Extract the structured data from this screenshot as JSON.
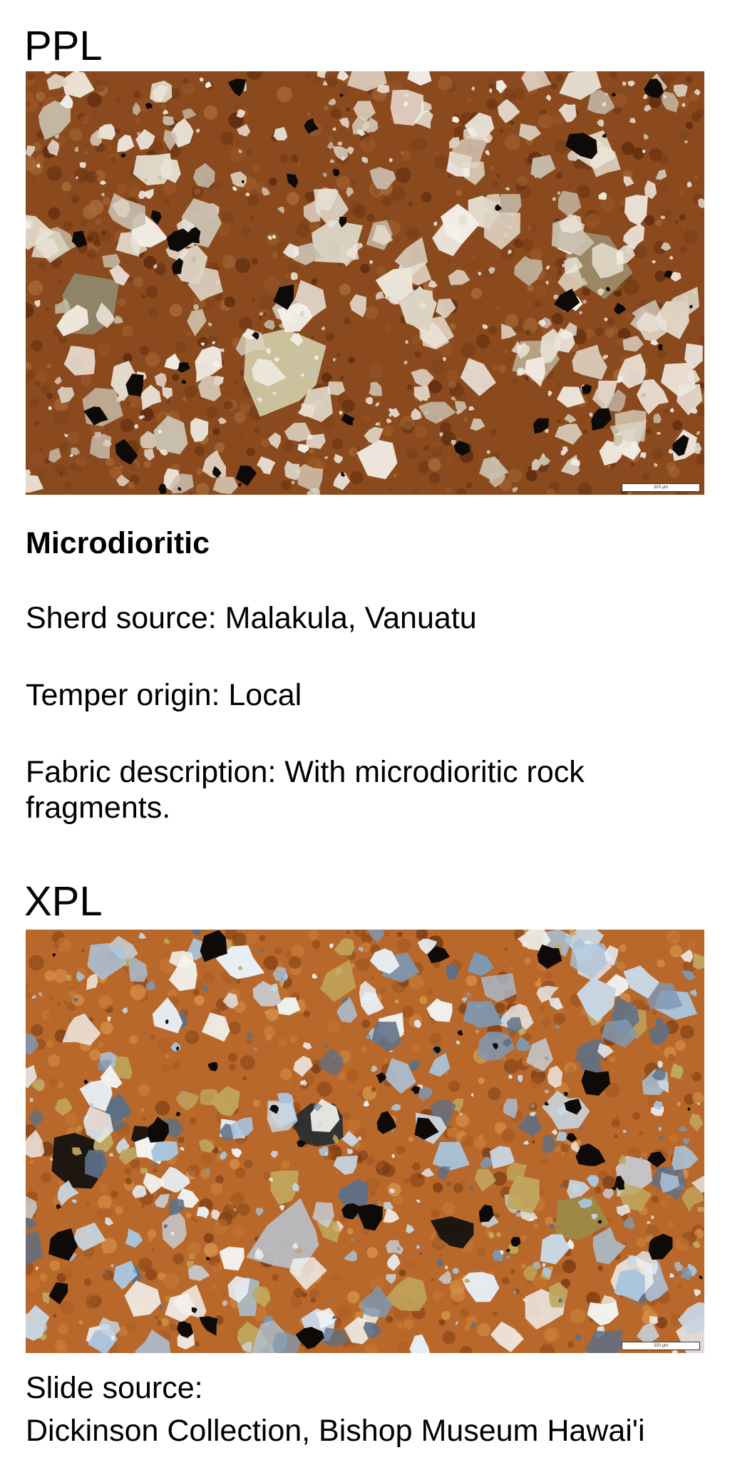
{
  "ppl": {
    "heading": "PPL",
    "scale_label": "200 µm"
  },
  "fabric": {
    "name": "Microdioritic",
    "sherd_source": "Sherd source: Malakula, Vanuatu",
    "temper_origin": "Temper origin: Local",
    "description": "Fabric description: With microdioritic rock fragments."
  },
  "xpl": {
    "heading": "XPL",
    "scale_label": "200 µm"
  },
  "slide_source": {
    "label": "Slide source:",
    "value": "Dickinson Collection, Bishop Museum Hawai'i"
  },
  "colors": {
    "ppl_matrix": "#8a4a1e",
    "ppl_grain": "#ede6da",
    "xpl_matrix": "#b8682a",
    "xpl_grain": "#aac4dc",
    "opaque": "#0d0a08"
  }
}
